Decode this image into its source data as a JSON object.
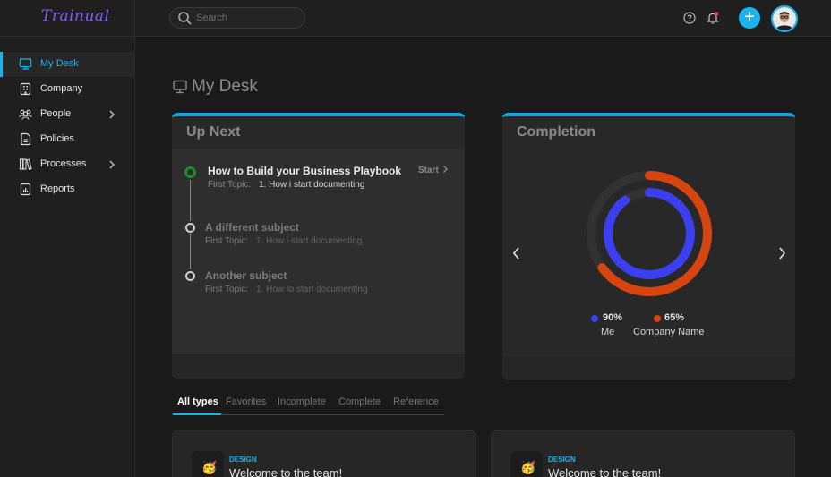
{
  "app": {
    "logo": "Trainual"
  },
  "search": {
    "placeholder": "Search"
  },
  "sidebar": {
    "items": [
      {
        "label": "My Desk",
        "icon": "monitor-icon",
        "active": true
      },
      {
        "label": "Company",
        "icon": "building-icon"
      },
      {
        "label": "People",
        "icon": "people-icon",
        "has_children": true
      },
      {
        "label": "Policies",
        "icon": "document-icon"
      },
      {
        "label": "Processes",
        "icon": "books-icon",
        "has_children": true
      },
      {
        "label": "Reports",
        "icon": "chart-document-icon"
      }
    ]
  },
  "page": {
    "title": "My Desk"
  },
  "upnext": {
    "title": "Up Next",
    "start_label": "Start",
    "items": [
      {
        "title": "How to Build your Business Playbook",
        "topic_label": "First Topic:",
        "topic": "1. How i start documenting"
      },
      {
        "title": "A different subject",
        "topic_label": "First Topic:",
        "topic": "1. How i start documenting"
      },
      {
        "title": "Another subject",
        "topic_label": "First Topic:",
        "topic": "1. How to start documenting"
      }
    ]
  },
  "completion": {
    "title": "Completion",
    "me": {
      "label": "Me",
      "value": 90,
      "display": "90%",
      "color": "#3c3ff0"
    },
    "company": {
      "label": "Company Name",
      "value": 65,
      "display": "65%",
      "color": "#d6450f"
    }
  },
  "tabs": [
    "All types",
    "Favorites",
    "Incomplete",
    "Complete",
    "Reference"
  ],
  "cards": [
    {
      "tag": "DESIGN",
      "title": "Welcome to the team!",
      "emoji": "🥳"
    },
    {
      "tag": "DESIGN",
      "title": "Welcome to the team!",
      "emoji": "🥳"
    }
  ],
  "colors": {
    "accent": "#19b4ef",
    "brand": "#8a5cf6",
    "success": "#1e8c2a"
  }
}
